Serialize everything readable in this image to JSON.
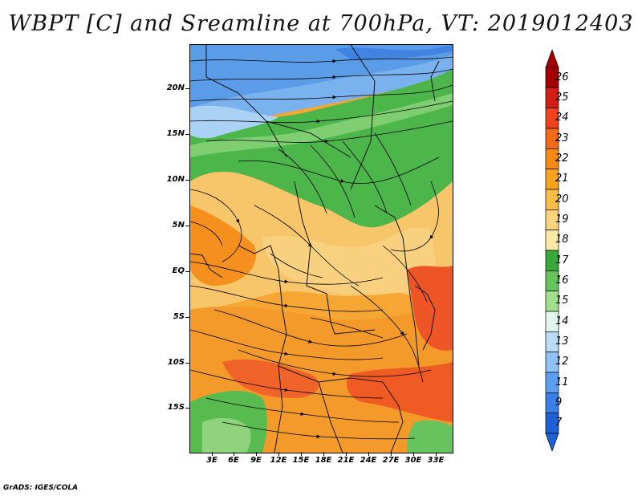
{
  "title": "WBPT [C] and Sreamline at 700hPa, VT: 2019012403",
  "lat_labels": [
    "20N",
    "15N",
    "10N",
    "5N",
    "EQ",
    "5S",
    "10S",
    "15S"
  ],
  "lon_labels": [
    "3E",
    "6E",
    "9E",
    "12E",
    "15E",
    "18E",
    "21E",
    "24E",
    "27E",
    "30E",
    "33E"
  ],
  "colorbar": {
    "levels": [
      "26",
      "25",
      "24",
      "23",
      "22",
      "21",
      "20",
      "19",
      "18",
      "17",
      "16",
      "15",
      "14",
      "13",
      "12",
      "11",
      "9",
      "7"
    ],
    "colors": [
      "#a50000",
      "#d41e14",
      "#f1421f",
      "#f36a18",
      "#f58a14",
      "#f7a31e",
      "#f8bb45",
      "#f9d47d",
      "#fbe9a8",
      "#39a93b",
      "#66c35e",
      "#a3dd8e",
      "#e3f7ec",
      "#b9dbf6",
      "#8fc2f4",
      "#5f9ff0",
      "#3a7fe6",
      "#1f62d5"
    ]
  },
  "footer": "GrADS: IGES/COLA"
}
